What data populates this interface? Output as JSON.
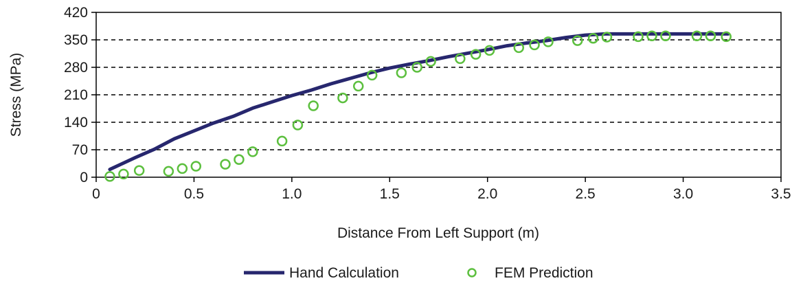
{
  "chart_data": {
    "type": "line",
    "xlabel": "Distance From Left Support (m)",
    "ylabel": "Stress (MPa)",
    "xlim": [
      0,
      3.5
    ],
    "ylim": [
      0,
      420
    ],
    "x_ticks": [
      0,
      0.5,
      1.0,
      1.5,
      2.0,
      2.5,
      3.0,
      3.5
    ],
    "x_tick_labels": [
      "0",
      "0.5",
      "1.0",
      "1.5",
      "2.0",
      "2.5",
      "3.0",
      "3.5"
    ],
    "y_ticks": [
      0,
      70,
      140,
      210,
      280,
      350,
      420
    ],
    "y_tick_labels": [
      "0",
      "70",
      "140",
      "210",
      "280",
      "350",
      "420"
    ],
    "grid": "horizontal dashed",
    "legend_position": "bottom",
    "series": [
      {
        "name": "Hand Calculation",
        "style": "line",
        "color": "#27276e",
        "x": [
          0.07,
          0.2,
          0.3,
          0.4,
          0.5,
          0.6,
          0.7,
          0.8,
          0.9,
          1.0,
          1.1,
          1.2,
          1.3,
          1.4,
          1.5,
          1.6,
          1.7,
          1.8,
          1.9,
          2.0,
          2.1,
          2.2,
          2.3,
          2.4,
          2.5,
          2.6,
          2.8,
          3.0,
          3.2,
          3.23
        ],
        "y": [
          20,
          50,
          72,
          98,
          118,
          138,
          155,
          176,
          192,
          208,
          222,
          238,
          252,
          266,
          278,
          288,
          297,
          307,
          316,
          325,
          335,
          342,
          348,
          356,
          362,
          365,
          365,
          365,
          365,
          365
        ]
      },
      {
        "name": "FEM Prediction",
        "style": "scatter",
        "color": "#5cbf3e",
        "x": [
          0.07,
          0.14,
          0.22,
          0.37,
          0.44,
          0.51,
          0.66,
          0.73,
          0.8,
          0.95,
          1.03,
          1.11,
          1.26,
          1.34,
          1.41,
          1.56,
          1.64,
          1.71,
          1.86,
          1.94,
          2.01,
          2.16,
          2.24,
          2.31,
          2.46,
          2.54,
          2.61,
          2.77,
          2.84,
          2.91,
          3.07,
          3.14,
          3.22
        ],
        "y": [
          2,
          8,
          17,
          15,
          22,
          28,
          33,
          45,
          65,
          92,
          133,
          182,
          202,
          232,
          260,
          266,
          280,
          295,
          302,
          313,
          323,
          330,
          337,
          345,
          348,
          354,
          357,
          358,
          360,
          360,
          360,
          360,
          358
        ]
      }
    ]
  }
}
